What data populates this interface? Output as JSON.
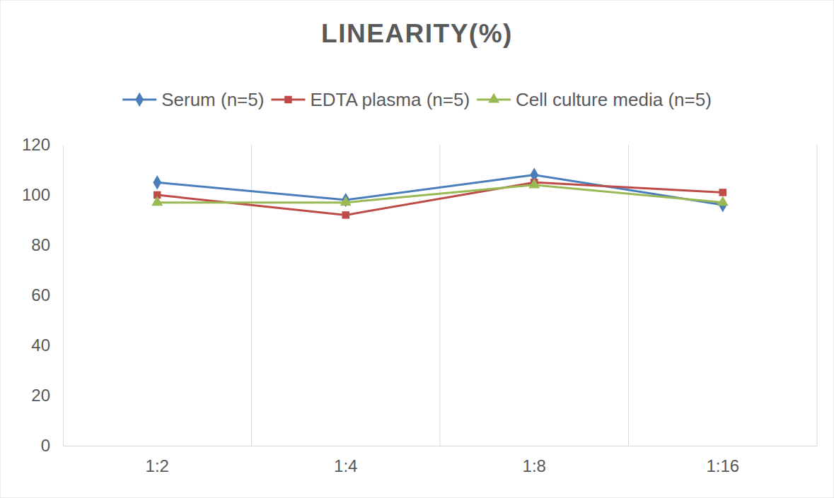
{
  "chart_data": {
    "type": "line",
    "title": "LINEARITY(%)",
    "categories": [
      "1:2",
      "1:4",
      "1:8",
      "1:16"
    ],
    "series": [
      {
        "name": "Serum (n=5)",
        "color": "#4a7ebb",
        "marker": "diamond",
        "values": [
          105,
          98,
          108,
          96
        ]
      },
      {
        "name": "EDTA plasma (n=5)",
        "color": "#be4b48",
        "marker": "square",
        "values": [
          100,
          92,
          105,
          101
        ]
      },
      {
        "name": "Cell culture media (n=5)",
        "color": "#98b954",
        "marker": "triangle",
        "values": [
          97,
          97,
          104,
          97
        ]
      }
    ],
    "ylim": [
      0,
      120
    ],
    "yticks": [
      0,
      20,
      40,
      60,
      80,
      100,
      120
    ],
    "grid": true,
    "legend": "top"
  }
}
